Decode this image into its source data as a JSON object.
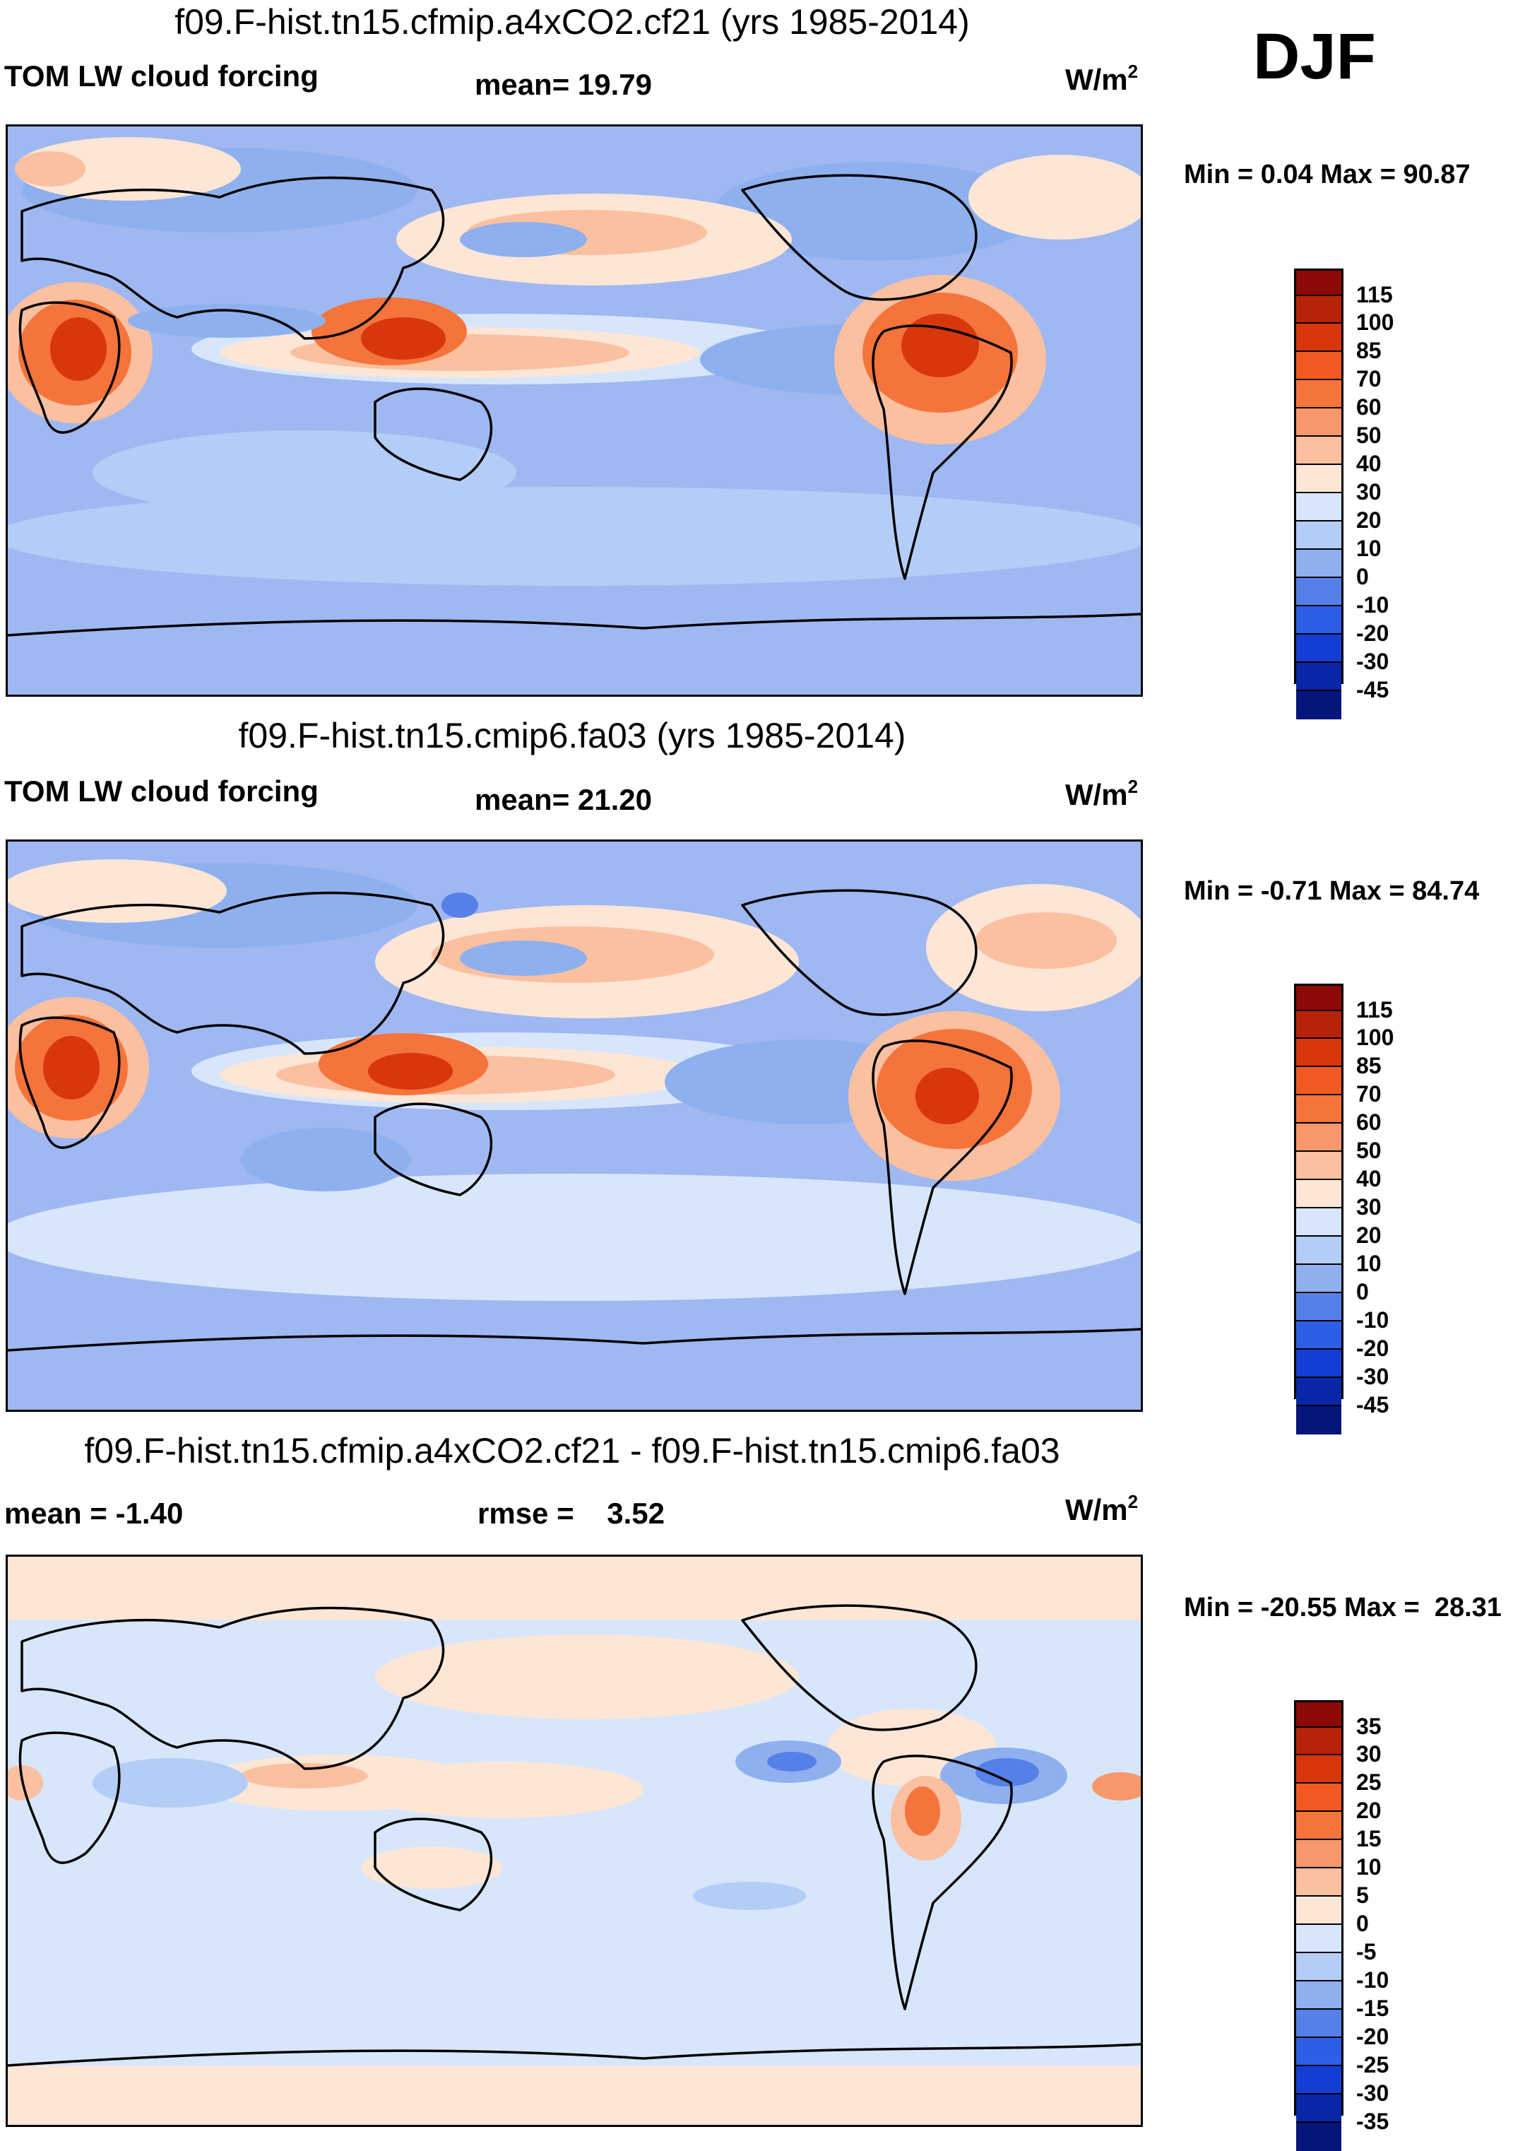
{
  "season": "DJF",
  "colorbar_main": {
    "labels": [
      "115",
      "100",
      "85",
      "70",
      "60",
      "50",
      "40",
      "30",
      "20",
      "10",
      "0",
      "-10",
      "-20",
      "-30",
      "-45"
    ],
    "colors": [
      "#8b0a05",
      "#b72306",
      "#d8360d",
      "#f25a22",
      "#f5743c",
      "#f8976b",
      "#fbc0a0",
      "#fde6d6",
      "#d7e6fb",
      "#b4cdf6",
      "#8eb0ef",
      "#5580e8",
      "#2d5fe6",
      "#143ed3",
      "#0a26a8",
      "#05157a"
    ]
  },
  "colorbar_diff": {
    "labels": [
      "35",
      "30",
      "25",
      "20",
      "15",
      "10",
      "5",
      "0",
      "-5",
      "-10",
      "-15",
      "-20",
      "-25",
      "-30",
      "-35"
    ],
    "colors": [
      "#8b0a05",
      "#b72306",
      "#d8360d",
      "#f25a22",
      "#f5743c",
      "#f8976b",
      "#fbc0a0",
      "#fde6d6",
      "#d7e6fb",
      "#b4cdf6",
      "#8eb0ef",
      "#5580e8",
      "#2d5fe6",
      "#143ed3",
      "#0a26a8",
      "#05157a"
    ]
  },
  "panels": [
    {
      "title": "f09.F-hist.tn15.cfmip.a4xCO2.cf21 (yrs 1985-2014)",
      "left_label": "TOM LW cloud forcing",
      "center_label": "mean=  19.79",
      "units": "W/m",
      "units_sup": "2",
      "minmax": "Min =   0.04 Max =  90.87"
    },
    {
      "title": "f09.F-hist.tn15.cmip6.fa03 (yrs 1985-2014)",
      "left_label": "TOM LW cloud forcing",
      "center_label": "mean=  21.20",
      "units": "W/m",
      "units_sup": "2",
      "minmax": "Min =  -0.71 Max =  84.74"
    },
    {
      "title": "f09.F-hist.tn15.cfmip.a4xCO2.cf21 - f09.F-hist.tn15.cmip6.fa03",
      "left_label": "mean =  -1.40",
      "center_label": "rmse =    3.52",
      "units": "W/m",
      "units_sup": "2",
      "minmax": "Min = -20.55 Max =  28.31"
    }
  ],
  "chart_data": [
    {
      "type": "heatmap",
      "title": "f09.F-hist.tn15.cfmip.a4xCO2.cf21 (yrs 1985-2014)",
      "variable": "TOM LW cloud forcing",
      "units": "W/m2",
      "mean": 19.79,
      "min": 0.04,
      "max": 90.87,
      "contour_levels": [
        -45,
        -30,
        -20,
        -10,
        0,
        10,
        20,
        30,
        40,
        50,
        60,
        70,
        85,
        100,
        115
      ]
    },
    {
      "type": "heatmap",
      "title": "f09.F-hist.tn15.cmip6.fa03 (yrs 1985-2014)",
      "variable": "TOM LW cloud forcing",
      "units": "W/m2",
      "mean": 21.2,
      "min": -0.71,
      "max": 84.74,
      "contour_levels": [
        -45,
        -30,
        -20,
        -10,
        0,
        10,
        20,
        30,
        40,
        50,
        60,
        70,
        85,
        100,
        115
      ]
    },
    {
      "type": "heatmap",
      "title": "f09.F-hist.tn15.cfmip.a4xCO2.cf21 - f09.F-hist.tn15.cmip6.fa03",
      "units": "W/m2",
      "mean": -1.4,
      "rmse": 3.52,
      "min": -20.55,
      "max": 28.31,
      "contour_levels": [
        -35,
        -30,
        -25,
        -20,
        -15,
        -10,
        -5,
        0,
        5,
        10,
        15,
        20,
        25,
        30,
        35
      ]
    }
  ]
}
